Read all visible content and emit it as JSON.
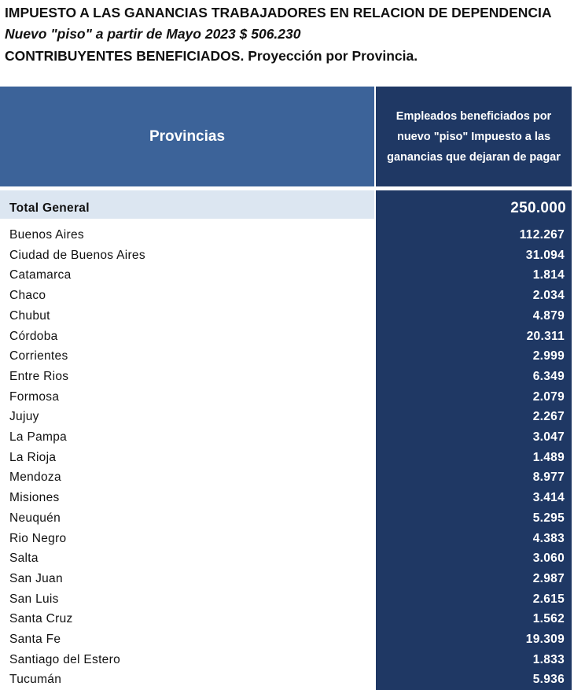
{
  "header": {
    "line1": "IMPUESTO A LAS GANANCIAS TRABAJADORES EN RELACION DE DEPENDENCIA",
    "line2": "Nuevo \"piso\" a partir de Mayo 2023 $ 506.230",
    "line3": "CONTRIBUYENTES BENEFICIADOS. Proyección por Provincia."
  },
  "table": {
    "columns": [
      "Provincias",
      "Empleados beneficiados por nuevo \"piso\" Impuesto a las ganancias que dejaran de pagar"
    ],
    "total": [
      "Total General",
      "250.000"
    ],
    "rows": [
      [
        "Buenos Aires",
        "112.267"
      ],
      [
        "Ciudad de Buenos Aires",
        "31.094"
      ],
      [
        "Catamarca",
        "1.814"
      ],
      [
        "Chaco",
        "2.034"
      ],
      [
        "Chubut",
        "4.879"
      ],
      [
        "Córdoba",
        "20.311"
      ],
      [
        "Corrientes",
        "2.999"
      ],
      [
        "Entre Rios",
        "6.349"
      ],
      [
        "Formosa",
        "2.079"
      ],
      [
        "Jujuy",
        "2.267"
      ],
      [
        "La Pampa",
        "3.047"
      ],
      [
        "La Rioja",
        "1.489"
      ],
      [
        "Mendoza",
        "8.977"
      ],
      [
        "Misiones",
        "3.414"
      ],
      [
        "Neuquén",
        "5.295"
      ],
      [
        "Rio Negro",
        "4.383"
      ],
      [
        "Salta",
        "3.060"
      ],
      [
        "San Juan",
        "2.987"
      ],
      [
        "San Luis",
        "2.615"
      ],
      [
        "Santa Cruz",
        "1.562"
      ],
      [
        "Santa Fe",
        "19.309"
      ],
      [
        "Santiago del Estero",
        "1.833"
      ],
      [
        "Tucumán",
        "5.936"
      ]
    ]
  }
}
